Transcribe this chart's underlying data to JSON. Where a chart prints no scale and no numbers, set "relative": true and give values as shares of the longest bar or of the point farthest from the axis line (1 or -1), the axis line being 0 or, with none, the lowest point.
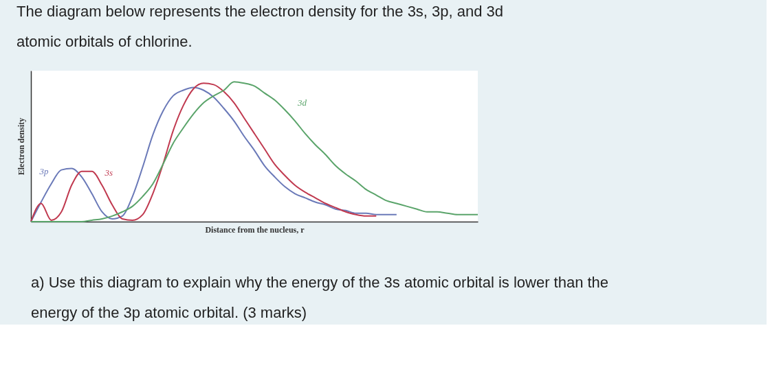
{
  "chart_data": {
    "type": "line",
    "title": "The diagram below represents the electron density for the 3s, 3p, and 3d atomic orbitals of chlorine.",
    "xlabel": "Distance from the nucleus, r",
    "ylabel": "Electron density",
    "relative": true,
    "grid": false,
    "legend": false,
    "marker": "none",
    "line_style": "solid",
    "categories": [
      null,
      null,
      null,
      null,
      null,
      null,
      null,
      null,
      null,
      null,
      null,
      null,
      null,
      null,
      null,
      null,
      null,
      null,
      null,
      null,
      null,
      null,
      null,
      null,
      null,
      null,
      null,
      null,
      null,
      null,
      null,
      null,
      null,
      null,
      null,
      null,
      null,
      null,
      null,
      null,
      null,
      null,
      null,
      null,
      null
    ],
    "series": [
      {
        "name": "3p",
        "color": "#6a79b8",
        "values": [
          0,
          0.14,
          0.27,
          0.37,
          0.38,
          0.32,
          0.2,
          0.07,
          0.02,
          0.04,
          0.18,
          0.39,
          0.62,
          0.79,
          0.9,
          0.94,
          0.96,
          0.94,
          0.89,
          0.81,
          0.72,
          0.61,
          0.51,
          0.4,
          0.32,
          0.25,
          0.2,
          0.17,
          0.14,
          0.12,
          0.09,
          0.08,
          0.06,
          0.06,
          0.05,
          0.05,
          0.05,
          null,
          null,
          null,
          null,
          null,
          null,
          null,
          null
        ]
      },
      {
        "name": "3s",
        "color": "#c0394f",
        "values": [
          0,
          0.13,
          0.01,
          0.07,
          0.26,
          0.36,
          0.36,
          0.26,
          0.12,
          0.02,
          0.01,
          0.05,
          0.2,
          0.41,
          0.65,
          0.83,
          0.95,
          0.99,
          0.98,
          0.93,
          0.85,
          0.74,
          0.63,
          0.52,
          0.41,
          0.33,
          0.26,
          0.21,
          0.17,
          0.13,
          0.1,
          0.07,
          0.05,
          0.04,
          0.04,
          null,
          null,
          null,
          null,
          null,
          null,
          null,
          null,
          null,
          null
        ]
      },
      {
        "name": "3d",
        "color": "#5aa46a",
        "values": [
          0,
          0,
          0,
          0,
          0,
          0,
          0.01,
          0.02,
          0.04,
          0.07,
          0.11,
          0.18,
          0.27,
          0.41,
          0.56,
          0.67,
          0.77,
          0.85,
          0.9,
          0.94,
          1,
          0.99,
          0.97,
          0.92,
          0.87,
          0.8,
          0.72,
          0.63,
          0.55,
          0.48,
          0.4,
          0.34,
          0.29,
          0.23,
          0.19,
          0.15,
          0.13,
          0.11,
          0.09,
          0.07,
          0.07,
          0.06,
          0.05,
          0.05,
          0.05
        ]
      }
    ],
    "annotations": [
      "a) Use this diagram to explain why the energy of the 3s atomic orbital is lower than the energy of the 3p atomic orbital. (3 marks)"
    ]
  }
}
